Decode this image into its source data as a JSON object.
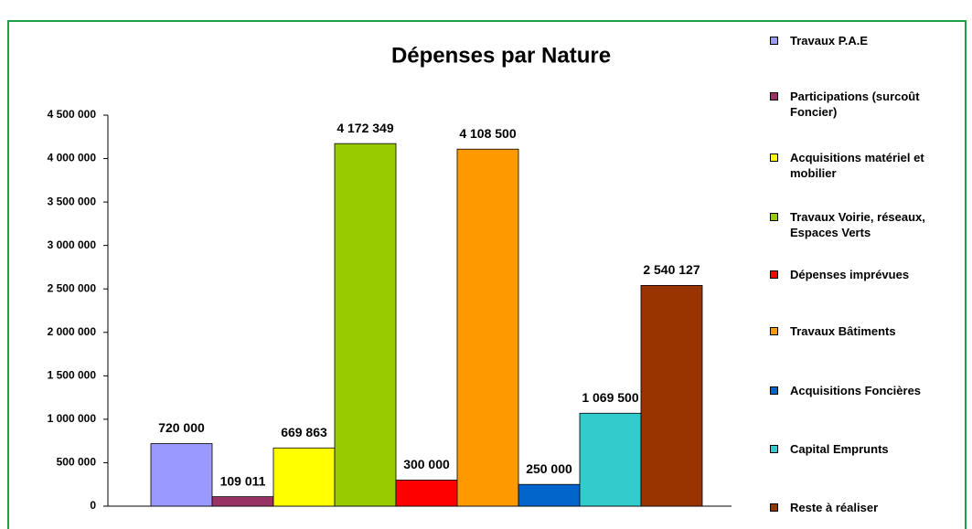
{
  "chart_data": {
    "type": "bar",
    "title": "Dépenses par Nature",
    "ylim": [
      0,
      4500000
    ],
    "yticks": [
      {
        "value": 0,
        "label": "0"
      },
      {
        "value": 500000,
        "label": "500 000"
      },
      {
        "value": 1000000,
        "label": "1 000 000"
      },
      {
        "value": 1500000,
        "label": "1 500 000"
      },
      {
        "value": 2000000,
        "label": "2 000 000"
      },
      {
        "value": 2500000,
        "label": "2 500 000"
      },
      {
        "value": 3000000,
        "label": "3 000 000"
      },
      {
        "value": 3500000,
        "label": "3 500 000"
      },
      {
        "value": 4000000,
        "label": "4 000 000"
      },
      {
        "value": 4500000,
        "label": "4 500 000"
      }
    ],
    "series": [
      {
        "name": "Travaux P.A.E",
        "color": "#9999ff",
        "values": [
          720000
        ],
        "value_labels": [
          "720 000"
        ]
      },
      {
        "name": "Participations (surcoût Foncier)",
        "color": "#993366",
        "values": [
          109011
        ],
        "value_labels": [
          "109 011"
        ]
      },
      {
        "name": "Acquisitions matériel et mobilier",
        "color": "#ffff00",
        "values": [
          669863
        ],
        "value_labels": [
          "669 863"
        ]
      },
      {
        "name": "Travaux Voirie, réseaux, Espaces Verts",
        "color": "#99cc00",
        "values": [
          4172349
        ],
        "value_labels": [
          "4 172 349"
        ]
      },
      {
        "name": "Dépenses imprévues",
        "color": "#ff0000",
        "values": [
          300000
        ],
        "value_labels": [
          "300 000"
        ]
      },
      {
        "name": "Travaux Bâtiments",
        "color": "#ff9900",
        "values": [
          4108500
        ],
        "value_labels": [
          "4 108 500"
        ]
      },
      {
        "name": "Acquisitions Foncières",
        "color": "#0066cc",
        "values": [
          250000
        ],
        "value_labels": [
          "250 000"
        ]
      },
      {
        "name": "Capital Emprunts",
        "color": "#33cccc",
        "values": [
          1069500
        ],
        "value_labels": [
          "1 069 500"
        ]
      },
      {
        "name": "Reste à réaliser",
        "color": "#993300",
        "values": [
          2540127
        ],
        "value_labels": [
          "2 540 127"
        ]
      }
    ]
  }
}
